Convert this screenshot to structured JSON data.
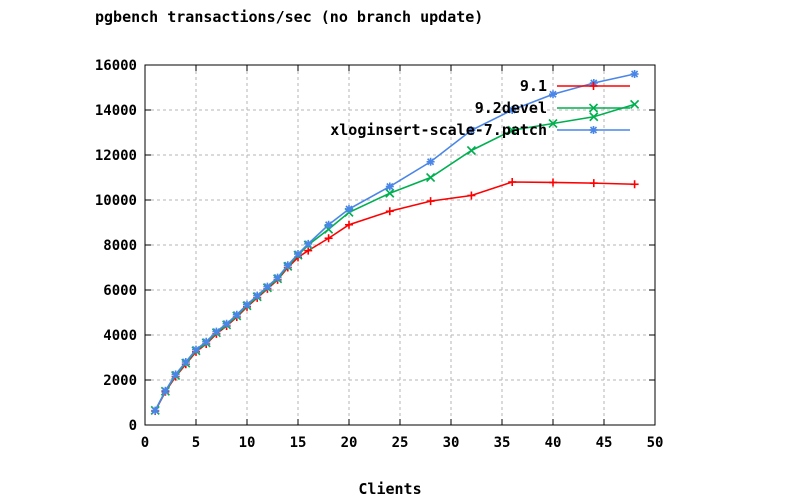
{
  "page": {
    "background": "#ffffff"
  },
  "chart_data": {
    "type": "line",
    "title": "pgbench transactions/sec (no branch update)",
    "xlabel": "Clients",
    "ylabel": "",
    "xlim": [
      0,
      50
    ],
    "ylim": [
      0,
      16000
    ],
    "xticks": [
      0,
      5,
      10,
      15,
      20,
      25,
      30,
      35,
      40,
      45,
      50
    ],
    "yticks": [
      0,
      2000,
      4000,
      6000,
      8000,
      10000,
      12000,
      14000,
      16000
    ],
    "grid": true,
    "grid_style": "dashed",
    "legend_position": "top-right-inside",
    "x": [
      1,
      2,
      3,
      4,
      5,
      6,
      7,
      8,
      9,
      10,
      11,
      12,
      13,
      14,
      15,
      16,
      18,
      20,
      24,
      28,
      32,
      36,
      40,
      44,
      48
    ],
    "series": [
      {
        "name": "9.1",
        "color": "#ff0000",
        "marker": "plus",
        "values": [
          620,
          1480,
          2150,
          2700,
          3250,
          3600,
          4050,
          4400,
          4800,
          5250,
          5650,
          6050,
          6450,
          7000,
          7450,
          7750,
          8300,
          8900,
          9500,
          9950,
          10200,
          10800,
          10780,
          10750,
          10700
        ]
      },
      {
        "name": "9.2devel",
        "color": "#00b050",
        "marker": "cross",
        "values": [
          650,
          1500,
          2200,
          2750,
          3300,
          3650,
          4100,
          4450,
          4850,
          5300,
          5700,
          6100,
          6500,
          7050,
          7550,
          8000,
          8700,
          9450,
          10300,
          11000,
          12200,
          13100,
          13400,
          13700,
          14250
        ]
      },
      {
        "name": "xloginsert-scale-7.patch",
        "color": "#4a86e8",
        "marker": "asterisk",
        "values": [
          640,
          1520,
          2250,
          2800,
          3350,
          3700,
          4150,
          4500,
          4900,
          5350,
          5750,
          6150,
          6550,
          7100,
          7600,
          8050,
          8900,
          9600,
          10600,
          11700,
          13100,
          14000,
          14700,
          15200,
          15600
        ]
      }
    ]
  }
}
